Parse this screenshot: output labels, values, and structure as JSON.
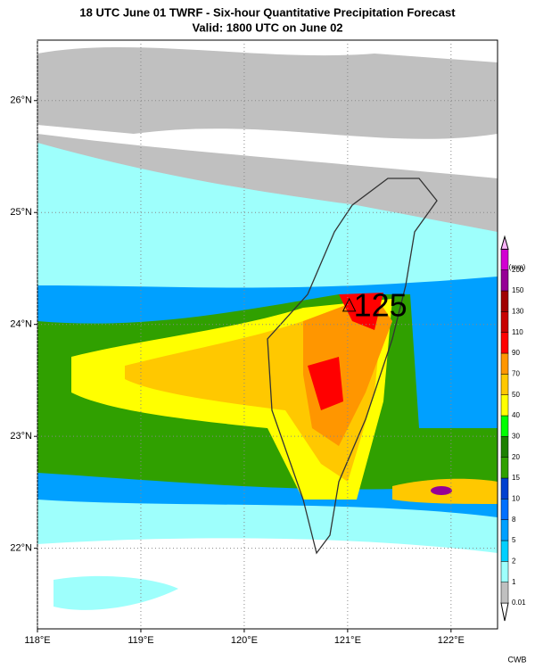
{
  "map": {
    "title": "18 UTC June 01 TWRF - Six-hour Quantitative Precipitation Forecast",
    "subtitle": "Valid: 1800 UTC on June 02",
    "xlim": [
      118,
      122.45
    ],
    "ylim": [
      21.28,
      26.54
    ],
    "lon_ticks": [
      {
        "value": 118,
        "label": "118°E"
      },
      {
        "value": 119,
        "label": "119°E"
      },
      {
        "value": 120,
        "label": "120°E"
      },
      {
        "value": 121,
        "label": "121°E"
      },
      {
        "value": 122,
        "label": "122°E"
      }
    ],
    "lat_ticks": [
      {
        "value": 22,
        "label": "22°N"
      },
      {
        "value": 23,
        "label": "23°N"
      },
      {
        "value": 24,
        "label": "24°N"
      },
      {
        "value": 25,
        "label": "25°N"
      },
      {
        "value": 26,
        "label": "26°N"
      }
    ],
    "annotation": {
      "text": "125",
      "lon": 121.3,
      "lat": 24.15
    },
    "colorbar": {
      "unit": "(mm)",
      "levels": [
        0.01,
        1,
        2,
        5,
        8,
        10,
        15,
        20,
        30,
        40,
        50,
        70,
        90,
        110,
        130,
        150,
        200,
        300
      ],
      "colors": [
        "#ffffff",
        "#c0c0c0",
        "#9efffc",
        "#00d0ff",
        "#00a0ff",
        "#0070ff",
        "#0040d0",
        "#30a000",
        "#1c8000",
        "#00ff00",
        "#ffff00",
        "#ffc800",
        "#ff9600",
        "#ff0000",
        "#c80000",
        "#a00000",
        "#960096",
        "#d200d2",
        "#ff00ff",
        "#ffb4ff"
      ]
    },
    "credit": "CWB"
  }
}
